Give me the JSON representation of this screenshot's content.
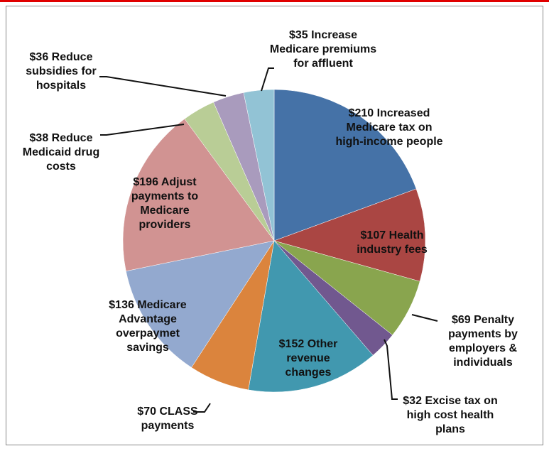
{
  "chart_data": {
    "type": "pie",
    "categories": [
      "Increased Medicare tax on high-income people",
      "Health industry fees",
      "Penalty payments by employers & individuals",
      "Excise tax on high cost health plans",
      "Other revenue changes",
      "CLASS payments",
      "Medicare Advantage overpaymet savings",
      "Adjust payments to Medicare providers",
      "Reduce Medicaid drug costs",
      "Reduce subsidies for hospitals",
      "Increase Medicare premiums for affluent"
    ],
    "values": [
      210,
      107,
      69,
      32,
      152,
      70,
      136,
      196,
      38,
      36,
      35
    ],
    "value_labels": [
      "$210",
      "$107",
      "$69",
      "$32",
      "$152",
      "$70",
      "$136",
      "$196",
      "$38",
      "$36",
      "$35"
    ],
    "colors": [
      "#4572A7",
      "#AA4643",
      "#89A54E",
      "#71588F",
      "#4198AF",
      "#DB843D",
      "#93A9CF",
      "#D19392",
      "#B9CD96",
      "#A99BBD",
      "#92C3D5"
    ]
  }
}
